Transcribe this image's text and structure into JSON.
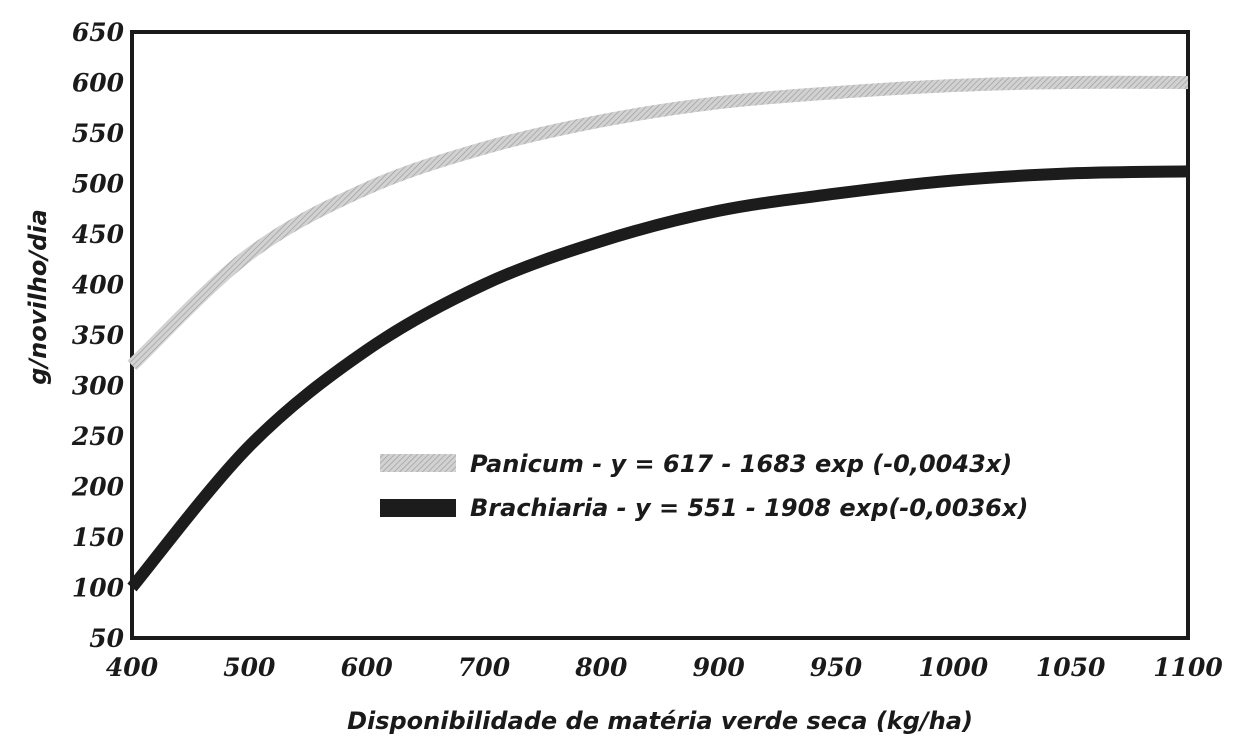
{
  "chart_data": {
    "type": "line",
    "xlabel": "Disponibilidade de matéria verde seca (kg/ha)",
    "ylabel": "g/novilho/dia",
    "x_ticks": [
      "400",
      "500",
      "600",
      "700",
      "800",
      "900",
      "950",
      "1000",
      "1050",
      "1100"
    ],
    "y_ticks": [
      "50",
      "100",
      "150",
      "200",
      "250",
      "300",
      "350",
      "400",
      "450",
      "500",
      "550",
      "600",
      "650"
    ],
    "ylim": [
      50,
      650
    ],
    "grid": false,
    "legend_position": "center",
    "series": [
      {
        "name": "Panicum - y = 617 - 1683 exp (-0,0043x)",
        "color": "#c4c4c4",
        "style": "hatched-light",
        "x": [
          "400",
          "500",
          "600",
          "700",
          "800",
          "900",
          "950",
          "1000",
          "1050",
          "1100"
        ],
        "values": [
          320,
          430,
          495,
          535,
          562,
          580,
          590,
          597,
          600,
          600
        ]
      },
      {
        "name": "Brachiaria - y = 551 - 1908 exp(-0,0036x)",
        "color": "#1c1c1c",
        "style": "solid-dark",
        "x": [
          "400",
          "500",
          "600",
          "700",
          "800",
          "900",
          "950",
          "1000",
          "1050",
          "1100"
        ],
        "values": [
          100,
          240,
          335,
          400,
          443,
          473,
          490,
          503,
          510,
          512
        ]
      }
    ]
  }
}
